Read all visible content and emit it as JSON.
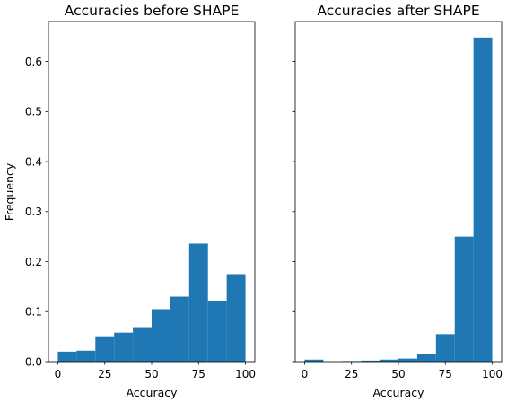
{
  "chart_data": [
    {
      "type": "bar",
      "title": "Accuracies before SHAPE",
      "xlabel": "Accuracy",
      "ylabel": "Frequency",
      "xlim": [
        -5,
        105
      ],
      "ylim": [
        0,
        0.68
      ],
      "xticks": [
        0,
        25,
        50,
        75,
        100
      ],
      "yticks": [
        0.0,
        0.1,
        0.2,
        0.3,
        0.4,
        0.5,
        0.6
      ],
      "bin_edges": [
        0,
        10,
        20,
        30,
        40,
        50,
        60,
        70,
        80,
        90,
        100
      ],
      "values": [
        0.02,
        0.022,
        0.049,
        0.058,
        0.069,
        0.105,
        0.13,
        0.236,
        0.121,
        0.175
      ],
      "color": "#1f77b4"
    },
    {
      "type": "bar",
      "title": "Accuracies after SHAPE",
      "xlabel": "Accuracy",
      "ylabel": "",
      "xlim": [
        -5,
        105
      ],
      "ylim": [
        0,
        0.68
      ],
      "xticks": [
        0,
        25,
        50,
        75,
        100
      ],
      "yticks": [
        0.0,
        0.1,
        0.2,
        0.3,
        0.4,
        0.5,
        0.6
      ],
      "show_ytick_labels": false,
      "bin_edges": [
        0,
        10,
        20,
        30,
        40,
        50,
        60,
        70,
        80,
        90,
        100
      ],
      "values": [
        0.004,
        0.0,
        0.001,
        0.002,
        0.004,
        0.006,
        0.016,
        0.055,
        0.25,
        0.648
      ],
      "color": "#1f77b4"
    }
  ]
}
